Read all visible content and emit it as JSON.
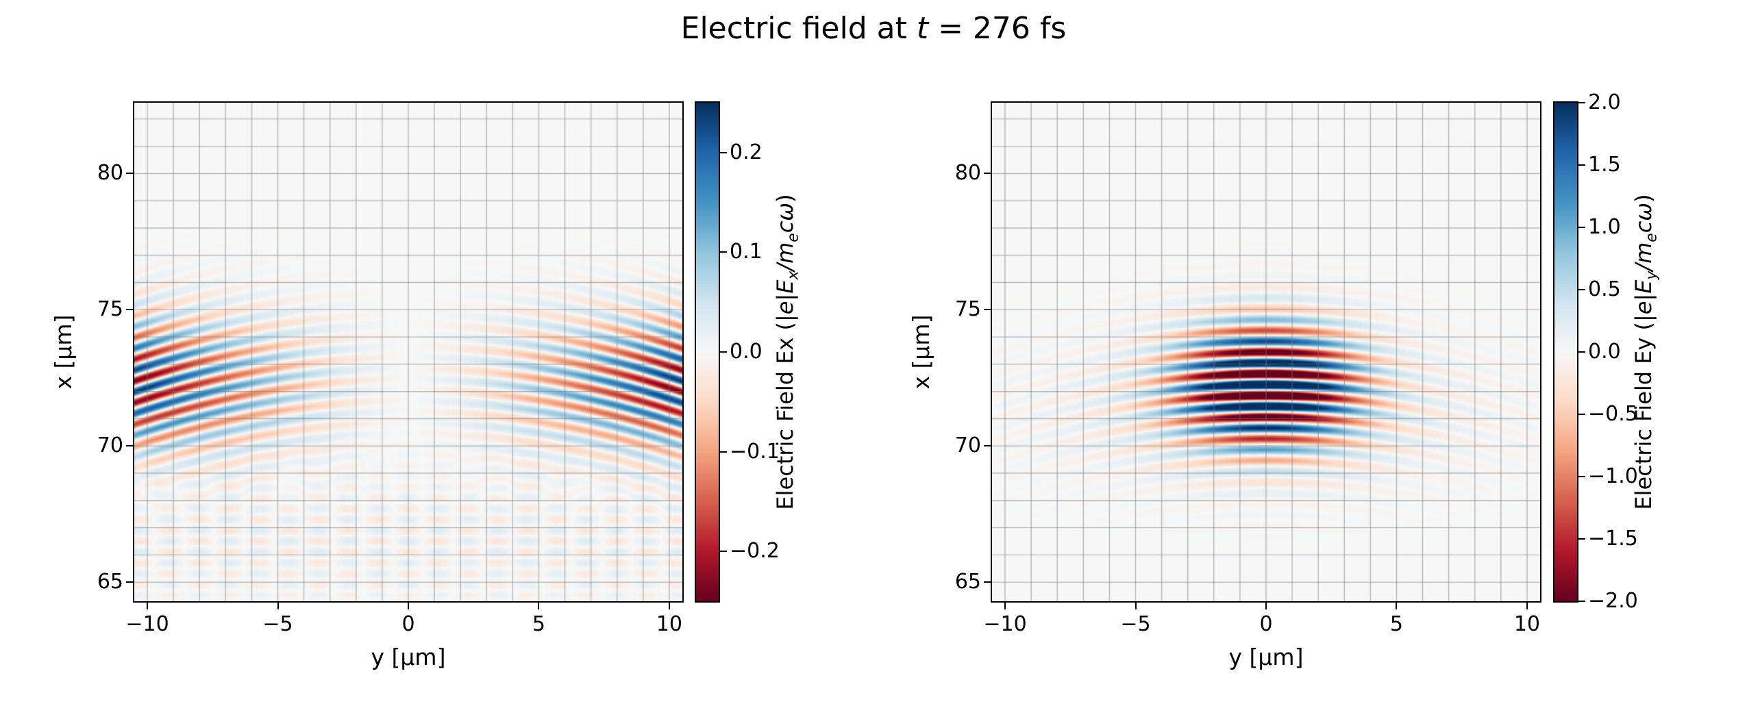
{
  "title": {
    "prefix": "Electric field at ",
    "t_symbol": "t",
    "suffix": " = 276 fs"
  },
  "colors": {
    "background": "#ffffff",
    "axes_background": "#f7f7f7",
    "grid": "#808080",
    "axis": "#000000",
    "rdbu_stops": [
      [
        103,
        0,
        31
      ],
      [
        178,
        24,
        43
      ],
      [
        214,
        96,
        77
      ],
      [
        244,
        165,
        130
      ],
      [
        253,
        219,
        199
      ],
      [
        247,
        247,
        247
      ],
      [
        209,
        229,
        240
      ],
      [
        146,
        197,
        222
      ],
      [
        67,
        147,
        195
      ],
      [
        33,
        102,
        172
      ],
      [
        5,
        48,
        97
      ]
    ]
  },
  "chart_data": [
    {
      "type": "heatmap",
      "name": "Ex",
      "description": "Curved horizontal interference fringes of laser pulse longitudinal field Ex, strongest near |y| = 10 and x = 69-75 um, pale on axis, faint criss-cross ripples below x = 69",
      "xlabel": "y [μm]",
      "ylabel": "x [μm]",
      "xlim": [
        -10.5,
        10.5
      ],
      "ylim": [
        64.3,
        82.6
      ],
      "xticks": {
        "values": [
          -10,
          -5,
          0,
          5,
          10
        ],
        "labels": [
          "−10",
          "−5",
          "0",
          "5",
          "10"
        ]
      },
      "yticks": {
        "values": [
          65,
          70,
          75,
          80
        ],
        "labels": [
          "65",
          "70",
          "75",
          "80"
        ]
      },
      "grid_spacing": 1,
      "colorbar": {
        "vmin": -0.25,
        "vmax": 0.25,
        "ticks": [
          0.2,
          0.1,
          0.0,
          -0.1,
          -0.2
        ],
        "tick_labels": [
          "0.2",
          "0.1",
          "0.0",
          "−0.1",
          "−0.2"
        ],
        "label_pre": "Electric Field Ex (",
        "label_m1": "|e|E",
        "label_sub1": "x",
        "label_m2": "/m",
        "label_sub2": "e",
        "label_m3": "cω",
        "label_post": ")"
      },
      "field_model": {
        "kind": "longitudinal",
        "amplitude": 0.24,
        "x_center": 72.25,
        "x_sigma": 2.4,
        "wavelength": 0.8,
        "curvature_radius": 33,
        "edge_halfwidth": 10,
        "edge_power": 1.3,
        "ripple_amplitude": 0.03,
        "ripple_x_center": 66.5,
        "ripple_x_sigma": 2.5,
        "ripple_y_wavefraction": 0.35
      }
    },
    {
      "type": "heatmap",
      "name": "Ey",
      "description": "Transverse field Ey of focused laser pulse: strong saturated alternating red/blue fringes centered at y = 0, x = 72 um with Gaussian envelope, faint curved wings toward |y| = 10",
      "xlabel": "y [μm]",
      "ylabel": "x [μm]",
      "xlim": [
        -10.5,
        10.5
      ],
      "ylim": [
        64.3,
        82.6
      ],
      "xticks": {
        "values": [
          -10,
          -5,
          0,
          5,
          10
        ],
        "labels": [
          "−10",
          "−5",
          "0",
          "5",
          "10"
        ]
      },
      "yticks": {
        "values": [
          65,
          70,
          75,
          80
        ],
        "labels": [
          "65",
          "70",
          "75",
          "80"
        ]
      },
      "grid_spacing": 1,
      "colorbar": {
        "vmin": -2.0,
        "vmax": 2.0,
        "ticks": [
          2.0,
          1.5,
          1.0,
          0.5,
          0.0,
          -0.5,
          -1.0,
          -1.5,
          -2.0
        ],
        "tick_labels": [
          "2.0",
          "1.5",
          "1.0",
          "0.5",
          "0.0",
          "−0.5",
          "−1.0",
          "−1.5",
          "−2.0"
        ],
        "label_pre": "Electric Field Ey (",
        "label_m1": "|e|E",
        "label_sub1": "y",
        "label_m2": "/m",
        "label_sub2": "e",
        "label_m3": "cω",
        "label_post": ")"
      },
      "field_model": {
        "kind": "transverse",
        "amplitude": 3.0,
        "x_center": 72.25,
        "x_sigma": 2.1,
        "y_sigma": 3.2,
        "wavelength": 0.8,
        "curvature_radius": 33,
        "broad_amplitude": 0.4,
        "broad_x_center": 71.3,
        "broad_x_sigma": 2.4,
        "broad_y_sigma": 7.5
      }
    }
  ]
}
